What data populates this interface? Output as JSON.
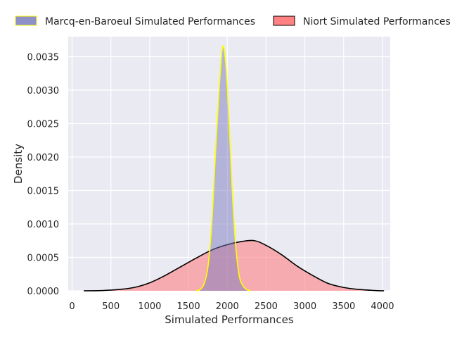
{
  "chart_data": {
    "type": "area",
    "xlabel": "Simulated Performances",
    "ylabel": "Density",
    "xlim": [
      -50,
      4100
    ],
    "ylim": [
      0,
      0.0038
    ],
    "xticks": [
      0,
      500,
      1000,
      1500,
      2000,
      2500,
      3000,
      3500,
      4000
    ],
    "xtick_labels": [
      "0",
      "500",
      "1000",
      "1500",
      "2000",
      "2500",
      "3000",
      "3500",
      "4000"
    ],
    "yticks": [
      0,
      0.0005,
      0.001,
      0.0015,
      0.002,
      0.0025,
      0.003,
      0.0035
    ],
    "ytick_labels": [
      "0.0000",
      "0.0005",
      "0.0010",
      "0.0015",
      "0.0020",
      "0.0025",
      "0.0030",
      "0.0035"
    ],
    "grid": true,
    "legend": "top",
    "series": [
      {
        "name": "Marcq-en-Baroeul Simulated Performances",
        "fill": "#7b7bc0",
        "edge": "#ffff00",
        "points": [
          [
            1600,
            0.0
          ],
          [
            1650,
            2e-05
          ],
          [
            1700,
            0.0001
          ],
          [
            1750,
            0.00035
          ],
          [
            1800,
            0.001
          ],
          [
            1850,
            0.0021
          ],
          [
            1900,
            0.0031
          ],
          [
            1940,
            0.00365
          ],
          [
            1980,
            0.0034
          ],
          [
            2020,
            0.0026
          ],
          [
            2060,
            0.0016
          ],
          [
            2100,
            0.0008
          ],
          [
            2150,
            0.00025
          ],
          [
            2200,
            8e-05
          ],
          [
            2250,
            2e-05
          ],
          [
            2300,
            0.0
          ]
        ]
      },
      {
        "name": "Niort Simulated Performances",
        "fill": "#ff6b6b",
        "edge": "#000000",
        "points": [
          [
            150,
            0.0
          ],
          [
            400,
            5e-06
          ],
          [
            600,
            2e-05
          ],
          [
            800,
            5e-05
          ],
          [
            1000,
            0.00012
          ],
          [
            1200,
            0.00023
          ],
          [
            1400,
            0.00036
          ],
          [
            1600,
            0.00049
          ],
          [
            1800,
            0.00061
          ],
          [
            2000,
            0.00069
          ],
          [
            2200,
            0.00074
          ],
          [
            2350,
            0.00075
          ],
          [
            2500,
            0.00068
          ],
          [
            2700,
            0.00054
          ],
          [
            2900,
            0.00037
          ],
          [
            3100,
            0.00023
          ],
          [
            3300,
            0.00011
          ],
          [
            3500,
            5e-05
          ],
          [
            3700,
            2e-05
          ],
          [
            3900,
            5e-06
          ],
          [
            4020,
            0.0
          ]
        ]
      }
    ]
  }
}
